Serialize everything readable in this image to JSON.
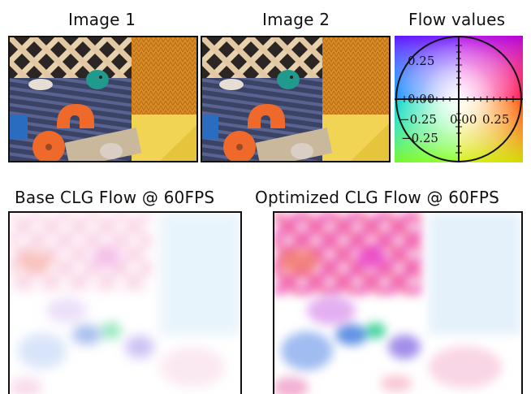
{
  "panels": {
    "image1": {
      "title": "Image 1"
    },
    "image2": {
      "title": "Image 2"
    },
    "flow_values": {
      "title": "Flow values",
      "y_ticks": [
        "0.25",
        "0.00",
        "−0.25"
      ],
      "x_ticks": [
        "−0.25",
        "0.00",
        "0.25"
      ]
    },
    "base_flow": {
      "title": "Base CLG Flow @ 60FPS"
    },
    "optimized_flow": {
      "title": "Optimized CLG Flow @ 60FPS"
    }
  },
  "colors": {
    "frame": "#111111",
    "wood": "#e8d2ae",
    "blanket": "#3a4266",
    "orange_fabric": "#d98b25",
    "teal_toy": "#1f9a8c",
    "orange_toy": "#ef6a2a",
    "yellow_box": "#f2d455"
  }
}
